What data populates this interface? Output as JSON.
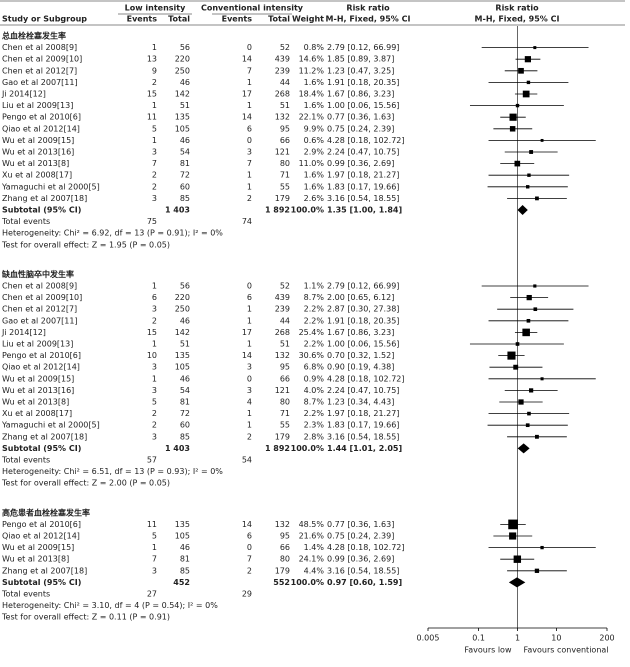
{
  "chart_data": {
    "type": "forest",
    "headers": {
      "study": "Study or Subgroup",
      "group1": "Low intensity",
      "group2": "Conventional intensity",
      "events1": "Events",
      "total1": "Total",
      "events2": "Events",
      "total2": "Total",
      "weight": "Weight",
      "effect": "Risk ratio",
      "method": "M-H, Fixed, 95% CI",
      "plot_effect": "Risk ratio",
      "plot_method": "M-H, Fixed, 95% CI"
    },
    "subgroups": [
      {
        "title": "总血栓栓塞发生率",
        "studies": [
          {
            "name": "Chen et al 2008[9]",
            "events1": 1,
            "total1": 56,
            "events2": 0,
            "total2": 52,
            "weight": 0.8,
            "weight_label": "0.8%",
            "rr": 2.79,
            "lo": 0.12,
            "hi": 66.99,
            "ci_label": "2.79 [0.12, 66.99]"
          },
          {
            "name": "Chen et al 2009[10]",
            "events1": 13,
            "total1": 220,
            "events2": 14,
            "total2": 439,
            "weight": 14.6,
            "weight_label": "14.6%",
            "rr": 1.85,
            "lo": 0.89,
            "hi": 3.87,
            "ci_label": "1.85 [0.89, 3.87]"
          },
          {
            "name": "Chen et al 2012[7]",
            "events1": 9,
            "total1": 250,
            "events2": 7,
            "total2": 239,
            "weight": 11.2,
            "weight_label": "11.2%",
            "rr": 1.23,
            "lo": 0.47,
            "hi": 3.25,
            "ci_label": "1.23 [0.47, 3.25]"
          },
          {
            "name": "Gao et al 2007[11]",
            "events1": 2,
            "total1": 46,
            "events2": 1,
            "total2": 44,
            "weight": 1.6,
            "weight_label": "1.6%",
            "rr": 1.91,
            "lo": 0.18,
            "hi": 20.35,
            "ci_label": "1.91 [0.18, 20.35]"
          },
          {
            "name": "Ji 2014[12]",
            "events1": 15,
            "total1": 142,
            "events2": 17,
            "total2": 268,
            "weight": 18.4,
            "weight_label": "18.4%",
            "rr": 1.67,
            "lo": 0.86,
            "hi": 3.23,
            "ci_label": "1.67 [0.86, 3.23]"
          },
          {
            "name": "Liu et al 2009[13]",
            "events1": 1,
            "total1": 51,
            "events2": 1,
            "total2": 51,
            "weight": 1.6,
            "weight_label": "1.6%",
            "rr": 1.0,
            "lo": 0.06,
            "hi": 15.56,
            "ci_label": "1.00 [0.06, 15.56]"
          },
          {
            "name": "Pengo et al 2010[6]",
            "events1": 11,
            "total1": 135,
            "events2": 14,
            "total2": 132,
            "weight": 22.1,
            "weight_label": "22.1%",
            "rr": 0.77,
            "lo": 0.36,
            "hi": 1.63,
            "ci_label": "0.77 [0.36, 1.63]"
          },
          {
            "name": "Qiao et al 2012[14]",
            "events1": 5,
            "total1": 105,
            "events2": 6,
            "total2": 95,
            "weight": 9.9,
            "weight_label": "9.9%",
            "rr": 0.75,
            "lo": 0.24,
            "hi": 2.39,
            "ci_label": "0.75 [0.24, 2.39]"
          },
          {
            "name": "Wu et al 2009[15]",
            "events1": 1,
            "total1": 46,
            "events2": 0,
            "total2": 66,
            "weight": 0.6,
            "weight_label": "0.6%",
            "rr": 4.28,
            "lo": 0.18,
            "hi": 102.72,
            "ci_label": "4.28 [0.18, 102.72]"
          },
          {
            "name": "Wu et al 2013[16]",
            "events1": 3,
            "total1": 54,
            "events2": 3,
            "total2": 121,
            "weight": 2.9,
            "weight_label": "2.9%",
            "rr": 2.24,
            "lo": 0.47,
            "hi": 10.75,
            "ci_label": "2.24 [0.47, 10.75]"
          },
          {
            "name": "Wu et al 2013[8]",
            "events1": 7,
            "total1": 81,
            "events2": 7,
            "total2": 80,
            "weight": 11.0,
            "weight_label": "11.0%",
            "rr": 0.99,
            "lo": 0.36,
            "hi": 2.69,
            "ci_label": "0.99 [0.36, 2.69]"
          },
          {
            "name": "Xu et al 2008[17]",
            "events1": 2,
            "total1": 72,
            "events2": 1,
            "total2": 71,
            "weight": 1.6,
            "weight_label": "1.6%",
            "rr": 1.97,
            "lo": 0.18,
            "hi": 21.27,
            "ci_label": "1.97 [0.18, 21.27]"
          },
          {
            "name": "Yamaguchi et al 2000[5]",
            "events1": 2,
            "total1": 60,
            "events2": 1,
            "total2": 55,
            "weight": 1.6,
            "weight_label": "1.6%",
            "rr": 1.83,
            "lo": 0.17,
            "hi": 19.66,
            "ci_label": "1.83 [0.17, 19.66]"
          },
          {
            "name": "Zhang et al 2007[18]",
            "events1": 3,
            "total1": 85,
            "events2": 2,
            "total2": 179,
            "weight": 2.6,
            "weight_label": "2.6%",
            "rr": 3.16,
            "lo": 0.54,
            "hi": 18.55,
            "ci_label": "3.16 [0.54, 18.55]"
          }
        ],
        "subtotal": {
          "name": "Subtotal (95% CI)",
          "total1": "1 403",
          "total2": "1 892",
          "weight_label": "100.0%",
          "rr": 1.35,
          "lo": 1.0,
          "hi": 1.84,
          "ci_label": "1.35 [1.00, 1.84]"
        },
        "total_events": {
          "label": "Total events",
          "events1": 75,
          "events2": 74
        },
        "heterogeneity": "Heterogeneity: Chi² = 6.92, df = 13 (P = 0.91); I² = 0%",
        "overall_effect": "Test for overall effect: Z = 1.95 (P = 0.05)"
      },
      {
        "title": "缺血性脑卒中发生率",
        "studies": [
          {
            "name": "Chen et al 2008[9]",
            "events1": 1,
            "total1": 56,
            "events2": 0,
            "total2": 52,
            "weight": 1.1,
            "weight_label": "1.1%",
            "rr": 2.79,
            "lo": 0.12,
            "hi": 66.99,
            "ci_label": "2.79 [0.12, 66.99]"
          },
          {
            "name": "Chen et al 2009[10]",
            "events1": 6,
            "total1": 220,
            "events2": 6,
            "total2": 439,
            "weight": 8.7,
            "weight_label": "8.7%",
            "rr": 2.0,
            "lo": 0.65,
            "hi": 6.12,
            "ci_label": "2.00 [0.65, 6.12]"
          },
          {
            "name": "Chen et al 2012[7]",
            "events1": 3,
            "total1": 250,
            "events2": 1,
            "total2": 239,
            "weight": 2.2,
            "weight_label": "2.2%",
            "rr": 2.87,
            "lo": 0.3,
            "hi": 27.38,
            "ci_label": "2.87 [0.30, 27.38]"
          },
          {
            "name": "Gao et al 2007[11]",
            "events1": 2,
            "total1": 46,
            "events2": 1,
            "total2": 44,
            "weight": 2.2,
            "weight_label": "2.2%",
            "rr": 1.91,
            "lo": 0.18,
            "hi": 20.35,
            "ci_label": "1.91 [0.18, 20.35]"
          },
          {
            "name": "Ji 2014[12]",
            "events1": 15,
            "total1": 142,
            "events2": 17,
            "total2": 268,
            "weight": 25.4,
            "weight_label": "25.4%",
            "rr": 1.67,
            "lo": 0.86,
            "hi": 3.23,
            "ci_label": "1.67 [0.86, 3.23]"
          },
          {
            "name": "Liu et al 2009[13]",
            "events1": 1,
            "total1": 51,
            "events2": 1,
            "total2": 51,
            "weight": 2.2,
            "weight_label": "2.2%",
            "rr": 1.0,
            "lo": 0.06,
            "hi": 15.56,
            "ci_label": "1.00 [0.06, 15.56]"
          },
          {
            "name": "Pengo et al 2010[6]",
            "events1": 10,
            "total1": 135,
            "events2": 14,
            "total2": 132,
            "weight": 30.6,
            "weight_label": "30.6%",
            "rr": 0.7,
            "lo": 0.32,
            "hi": 1.52,
            "ci_label": "0.70 [0.32, 1.52]"
          },
          {
            "name": "Qiao et al 2012[14]",
            "events1": 3,
            "total1": 105,
            "events2": 3,
            "total2": 95,
            "weight": 6.8,
            "weight_label": "6.8%",
            "rr": 0.9,
            "lo": 0.19,
            "hi": 4.38,
            "ci_label": "0.90 [0.19, 4.38]"
          },
          {
            "name": "Wu et al 2009[15]",
            "events1": 1,
            "total1": 46,
            "events2": 0,
            "total2": 66,
            "weight": 0.9,
            "weight_label": "0.9%",
            "rr": 4.28,
            "lo": 0.18,
            "hi": 102.72,
            "ci_label": "4.28 [0.18, 102.72]"
          },
          {
            "name": "Wu et al 2013[16]",
            "events1": 3,
            "total1": 54,
            "events2": 3,
            "total2": 121,
            "weight": 4.0,
            "weight_label": "4.0%",
            "rr": 2.24,
            "lo": 0.47,
            "hi": 10.75,
            "ci_label": "2.24 [0.47, 10.75]"
          },
          {
            "name": "Wu et al 2013[8]",
            "events1": 5,
            "total1": 81,
            "events2": 4,
            "total2": 80,
            "weight": 8.7,
            "weight_label": "8.7%",
            "rr": 1.23,
            "lo": 0.34,
            "hi": 4.43,
            "ci_label": "1.23 [0.34, 4.43]"
          },
          {
            "name": "Xu et al 2008[17]",
            "events1": 2,
            "total1": 72,
            "events2": 1,
            "total2": 71,
            "weight": 2.2,
            "weight_label": "2.2%",
            "rr": 1.97,
            "lo": 0.18,
            "hi": 21.27,
            "ci_label": "1.97 [0.18, 21.27]"
          },
          {
            "name": "Yamaguchi et al 2000[5]",
            "events1": 2,
            "total1": 60,
            "events2": 1,
            "total2": 55,
            "weight": 2.3,
            "weight_label": "2.3%",
            "rr": 1.83,
            "lo": 0.17,
            "hi": 19.66,
            "ci_label": "1.83 [0.17, 19.66]"
          },
          {
            "name": "Zhang et al 2007[18]",
            "events1": 3,
            "total1": 85,
            "events2": 2,
            "total2": 179,
            "weight": 2.8,
            "weight_label": "2.8%",
            "rr": 3.16,
            "lo": 0.54,
            "hi": 18.55,
            "ci_label": "3.16 [0.54, 18.55]"
          }
        ],
        "subtotal": {
          "name": "Subtotal (95% CI)",
          "total1": "1 403",
          "total2": "1 892",
          "weight_label": "100.0%",
          "rr": 1.44,
          "lo": 1.01,
          "hi": 2.05,
          "ci_label": "1.44 [1.01, 2.05]"
        },
        "total_events": {
          "label": "Total events",
          "events1": 57,
          "events2": 54
        },
        "heterogeneity": "Heterogeneity: Chi² = 6.51, df = 13 (P = 0.93); I² = 0%",
        "overall_effect": "Test for overall effect: Z = 2.00 (P = 0.05)"
      },
      {
        "title": "高危患者血栓栓塞发生率",
        "studies": [
          {
            "name": "Pengo et al 2010[6]",
            "events1": 11,
            "total1": 135,
            "events2": 14,
            "total2": 132,
            "weight": 48.5,
            "weight_label": "48.5%",
            "rr": 0.77,
            "lo": 0.36,
            "hi": 1.63,
            "ci_label": "0.77 [0.36, 1.63]"
          },
          {
            "name": "Qiao et al 2012[14]",
            "events1": 5,
            "total1": 105,
            "events2": 6,
            "total2": 95,
            "weight": 21.6,
            "weight_label": "21.6%",
            "rr": 0.75,
            "lo": 0.24,
            "hi": 2.39,
            "ci_label": "0.75 [0.24, 2.39]"
          },
          {
            "name": "Wu et al 2009[15]",
            "events1": 1,
            "total1": 46,
            "events2": 0,
            "total2": 66,
            "weight": 1.4,
            "weight_label": "1.4%",
            "rr": 4.28,
            "lo": 0.18,
            "hi": 102.72,
            "ci_label": "4.28 [0.18, 102.72]"
          },
          {
            "name": "Wu et al 2013[8]",
            "events1": 7,
            "total1": 81,
            "events2": 7,
            "total2": 80,
            "weight": 24.1,
            "weight_label": "24.1%",
            "rr": 0.99,
            "lo": 0.36,
            "hi": 2.69,
            "ci_label": "0.99 [0.36, 2.69]"
          },
          {
            "name": "Zhang et al 2007[18]",
            "events1": 3,
            "total1": 85,
            "events2": 2,
            "total2": 179,
            "weight": 4.4,
            "weight_label": "4.4%",
            "rr": 3.16,
            "lo": 0.54,
            "hi": 18.55,
            "ci_label": "3.16 [0.54, 18.55]"
          }
        ],
        "subtotal": {
          "name": "Subtotal (95% CI)",
          "total1": "452",
          "total2": "552",
          "weight_label": "100.0%",
          "rr": 0.97,
          "lo": 0.6,
          "hi": 1.59,
          "ci_label": "0.97 [0.60, 1.59]"
        },
        "total_events": {
          "label": "Total events",
          "events1": 27,
          "events2": 29
        },
        "heterogeneity": "Heterogeneity: Chi² = 3.10, df = 4 (P = 0.54); I² = 0%",
        "overall_effect": "Test for overall effect: Z = 0.11 (P = 0.91)"
      }
    ],
    "xlim": [
      0.005,
      200
    ],
    "xticks": [
      0.005,
      0.1,
      1,
      10,
      200
    ],
    "xlog": true,
    "favours_left": "Favours low",
    "favours_right": "Favours conventional"
  }
}
